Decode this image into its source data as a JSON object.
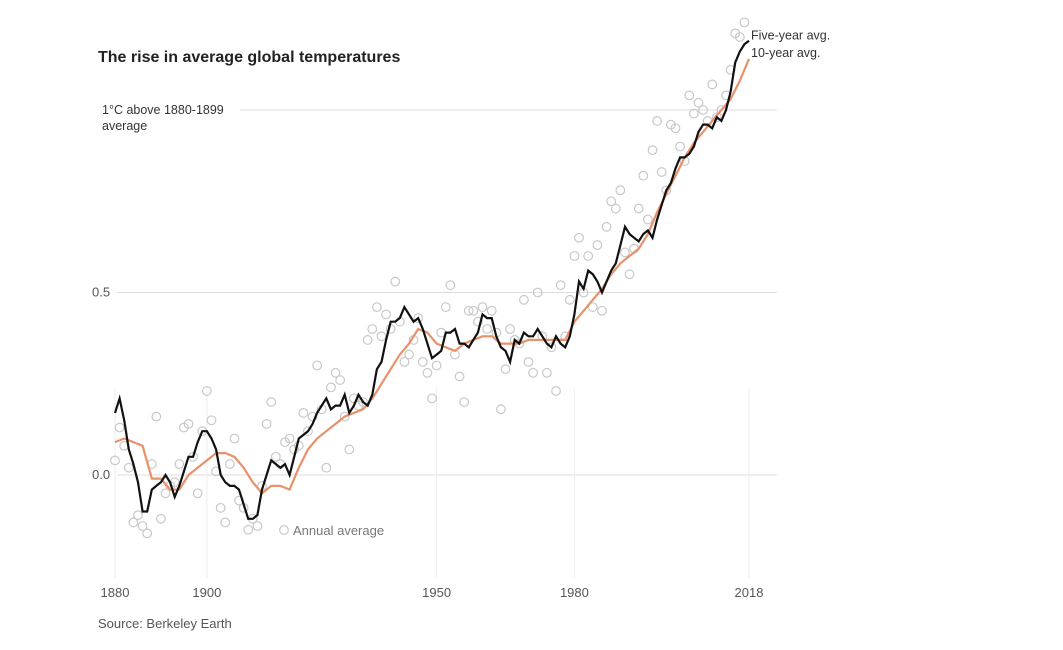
{
  "chart_data": {
    "type": "line",
    "title": "The rise in average global temperatures",
    "source": "Source: Berkeley Earth",
    "x_ticks": [
      "1880",
      "1900",
      "1950",
      "1980",
      "2018"
    ],
    "x_tick_values": [
      1880,
      1900,
      1950,
      1980,
      2018
    ],
    "y_ticks": [
      {
        "value": 0.0,
        "label": "0.0"
      },
      {
        "value": 0.5,
        "label": "0.5"
      },
      {
        "value": 1.0,
        "label_lines": [
          "1°C above 1880-1899",
          "average"
        ]
      }
    ],
    "xlim": [
      1880,
      2018
    ],
    "ylim": [
      -0.28,
      1.28
    ],
    "grid": "horizontal",
    "colors": {
      "five_year": "#111111",
      "ten_year": "#e8916a",
      "annual": "#c8c8c8",
      "grid": "#dddddd"
    },
    "series": [
      {
        "name": "Five-year avg.",
        "style": "line",
        "x": [
          1880,
          1881,
          1882,
          1883,
          1884,
          1885,
          1886,
          1887,
          1888,
          1889,
          1890,
          1891,
          1892,
          1893,
          1894,
          1895,
          1896,
          1897,
          1898,
          1899,
          1900,
          1901,
          1902,
          1903,
          1904,
          1905,
          1906,
          1907,
          1908,
          1909,
          1910,
          1911,
          1912,
          1913,
          1914,
          1915,
          1916,
          1917,
          1918,
          1919,
          1920,
          1921,
          1922,
          1923,
          1924,
          1925,
          1926,
          1927,
          1928,
          1929,
          1930,
          1931,
          1932,
          1933,
          1934,
          1935,
          1936,
          1937,
          1938,
          1939,
          1940,
          1941,
          1942,
          1943,
          1944,
          1945,
          1946,
          1947,
          1948,
          1949,
          1950,
          1951,
          1952,
          1953,
          1954,
          1955,
          1956,
          1957,
          1958,
          1959,
          1960,
          1961,
          1962,
          1963,
          1964,
          1965,
          1966,
          1967,
          1968,
          1969,
          1970,
          1971,
          1972,
          1973,
          1974,
          1975,
          1976,
          1977,
          1978,
          1979,
          1980,
          1981,
          1982,
          1983,
          1984,
          1985,
          1986,
          1987,
          1988,
          1989,
          1990,
          1991,
          1992,
          1993,
          1994,
          1995,
          1996,
          1997,
          1998,
          1999,
          2000,
          2001,
          2002,
          2003,
          2004,
          2005,
          2006,
          2007,
          2008,
          2009,
          2010,
          2011,
          2012,
          2013,
          2014,
          2015,
          2016,
          2017,
          2018
        ],
        "y": [
          0.17,
          0.21,
          0.15,
          0.07,
          0.03,
          -0.02,
          -0.1,
          -0.1,
          -0.04,
          -0.03,
          -0.02,
          0.0,
          -0.02,
          -0.06,
          -0.03,
          0.01,
          0.05,
          0.05,
          0.09,
          0.12,
          0.12,
          0.1,
          0.07,
          0.0,
          -0.02,
          -0.03,
          -0.03,
          -0.04,
          -0.08,
          -0.12,
          -0.12,
          -0.11,
          -0.04,
          0.0,
          0.04,
          0.03,
          0.02,
          0.03,
          0.0,
          0.05,
          0.1,
          0.11,
          0.12,
          0.14,
          0.17,
          0.19,
          0.21,
          0.18,
          0.19,
          0.19,
          0.22,
          0.17,
          0.19,
          0.22,
          0.2,
          0.19,
          0.22,
          0.29,
          0.31,
          0.37,
          0.42,
          0.42,
          0.43,
          0.46,
          0.44,
          0.42,
          0.43,
          0.4,
          0.36,
          0.32,
          0.33,
          0.34,
          0.39,
          0.39,
          0.4,
          0.36,
          0.36,
          0.35,
          0.37,
          0.39,
          0.44,
          0.43,
          0.43,
          0.38,
          0.35,
          0.34,
          0.31,
          0.37,
          0.36,
          0.39,
          0.38,
          0.38,
          0.4,
          0.38,
          0.36,
          0.35,
          0.38,
          0.36,
          0.35,
          0.38,
          0.44,
          0.53,
          0.51,
          0.56,
          0.55,
          0.53,
          0.5,
          0.53,
          0.56,
          0.58,
          0.63,
          0.68,
          0.66,
          0.65,
          0.64,
          0.66,
          0.67,
          0.65,
          0.7,
          0.74,
          0.78,
          0.8,
          0.84,
          0.87,
          0.87,
          0.88,
          0.9,
          0.94,
          0.96,
          0.96,
          0.95,
          0.98,
          0.97,
          1.0,
          1.05,
          1.13,
          1.16,
          1.18,
          1.19
        ]
      },
      {
        "name": "10-year avg.",
        "style": "line",
        "x": [
          1880,
          1882,
          1884,
          1886,
          1888,
          1890,
          1892,
          1894,
          1896,
          1898,
          1900,
          1902,
          1904,
          1906,
          1908,
          1910,
          1912,
          1914,
          1916,
          1918,
          1920,
          1922,
          1924,
          1926,
          1928,
          1930,
          1932,
          1934,
          1936,
          1938,
          1940,
          1942,
          1944,
          1946,
          1948,
          1950,
          1952,
          1954,
          1956,
          1958,
          1960,
          1962,
          1964,
          1966,
          1968,
          1970,
          1972,
          1974,
          1976,
          1978,
          1980,
          1982,
          1984,
          1986,
          1988,
          1990,
          1992,
          1994,
          1996,
          1998,
          2000,
          2002,
          2004,
          2006,
          2008,
          2010,
          2012,
          2014,
          2016,
          2018
        ],
        "y": [
          0.09,
          0.1,
          0.09,
          0.08,
          -0.01,
          -0.01,
          -0.04,
          -0.04,
          0.0,
          0.02,
          0.04,
          0.06,
          0.06,
          0.05,
          0.02,
          -0.02,
          -0.05,
          -0.03,
          -0.03,
          -0.04,
          0.02,
          0.07,
          0.1,
          0.12,
          0.14,
          0.16,
          0.17,
          0.18,
          0.21,
          0.25,
          0.29,
          0.33,
          0.36,
          0.4,
          0.39,
          0.36,
          0.35,
          0.34,
          0.36,
          0.37,
          0.38,
          0.38,
          0.36,
          0.36,
          0.36,
          0.37,
          0.37,
          0.37,
          0.37,
          0.37,
          0.42,
          0.45,
          0.48,
          0.51,
          0.55,
          0.58,
          0.6,
          0.62,
          0.66,
          0.72,
          0.77,
          0.82,
          0.87,
          0.91,
          0.94,
          0.97,
          1.0,
          1.03,
          1.08,
          1.14
        ]
      },
      {
        "name": "Annual average",
        "style": "points",
        "x": [
          1880,
          1881,
          1882,
          1883,
          1884,
          1885,
          1886,
          1887,
          1888,
          1889,
          1890,
          1891,
          1892,
          1893,
          1894,
          1895,
          1896,
          1897,
          1898,
          1899,
          1900,
          1901,
          1902,
          1903,
          1904,
          1905,
          1906,
          1907,
          1908,
          1909,
          1910,
          1911,
          1912,
          1913,
          1914,
          1915,
          1916,
          1917,
          1918,
          1919,
          1920,
          1921,
          1922,
          1923,
          1924,
          1925,
          1926,
          1927,
          1928,
          1929,
          1930,
          1931,
          1932,
          1933,
          1934,
          1935,
          1936,
          1937,
          1938,
          1939,
          1940,
          1941,
          1942,
          1943,
          1944,
          1945,
          1946,
          1947,
          1948,
          1949,
          1950,
          1951,
          1952,
          1953,
          1954,
          1955,
          1956,
          1957,
          1958,
          1959,
          1960,
          1961,
          1962,
          1963,
          1964,
          1965,
          1966,
          1967,
          1968,
          1969,
          1970,
          1971,
          1972,
          1973,
          1974,
          1975,
          1976,
          1977,
          1978,
          1979,
          1980,
          1981,
          1982,
          1983,
          1984,
          1985,
          1986,
          1987,
          1988,
          1989,
          1990,
          1991,
          1992,
          1993,
          1994,
          1995,
          1996,
          1997,
          1998,
          1999,
          2000,
          2001,
          2002,
          2003,
          2004,
          2005,
          2006,
          2007,
          2008,
          2009,
          2010,
          2011,
          2012,
          2013,
          2014,
          2015,
          2016,
          2017
        ],
        "y": [
          0.04,
          0.13,
          0.08,
          0.02,
          -0.13,
          -0.11,
          -0.14,
          -0.16,
          0.03,
          0.16,
          -0.12,
          -0.05,
          -0.03,
          -0.02,
          0.03,
          0.13,
          0.14,
          0.05,
          -0.05,
          0.12,
          0.23,
          0.15,
          0.01,
          -0.09,
          -0.13,
          0.03,
          0.1,
          -0.07,
          -0.09,
          -0.15,
          -0.12,
          -0.14,
          -0.03,
          0.14,
          0.2,
          0.05,
          0.03,
          0.09,
          0.1,
          0.07,
          0.08,
          0.17,
          0.12,
          0.16,
          0.3,
          0.18,
          0.02,
          0.24,
          0.28,
          0.26,
          0.16,
          0.07,
          0.21,
          0.19,
          0.2,
          0.37,
          0.4,
          0.46,
          0.38,
          0.44,
          0.4,
          0.53,
          0.42,
          0.31,
          0.33,
          0.37,
          0.43,
          0.31,
          0.28,
          0.21,
          0.3,
          0.39,
          0.46,
          0.52,
          0.33,
          0.27,
          0.2,
          0.45,
          0.45,
          0.42,
          0.46,
          0.4,
          0.45,
          0.39,
          0.18,
          0.29,
          0.4,
          0.37,
          0.36,
          0.48,
          0.31,
          0.28,
          0.5,
          0.38,
          0.28,
          0.35,
          0.23,
          0.52,
          0.38,
          0.48,
          0.6,
          0.65,
          0.5,
          0.6,
          0.46,
          0.63,
          0.45,
          0.68,
          0.75,
          0.73,
          0.78,
          0.61,
          0.55,
          0.62,
          0.73,
          0.82,
          0.7,
          0.89,
          0.97,
          0.83,
          0.78,
          0.96,
          0.95,
          0.9,
          0.86,
          1.04,
          0.99,
          1.02,
          1.0,
          0.97,
          1.07,
          0.98,
          1.0,
          1.04,
          1.11,
          1.21,
          1.2,
          1.24
        ]
      }
    ],
    "annotations": [
      {
        "text": "Five-year avg.",
        "series": "Five-year avg."
      },
      {
        "text": "10-year avg.",
        "series": "10-year avg."
      },
      {
        "text": "Annual average",
        "series": "Annual average"
      }
    ]
  }
}
